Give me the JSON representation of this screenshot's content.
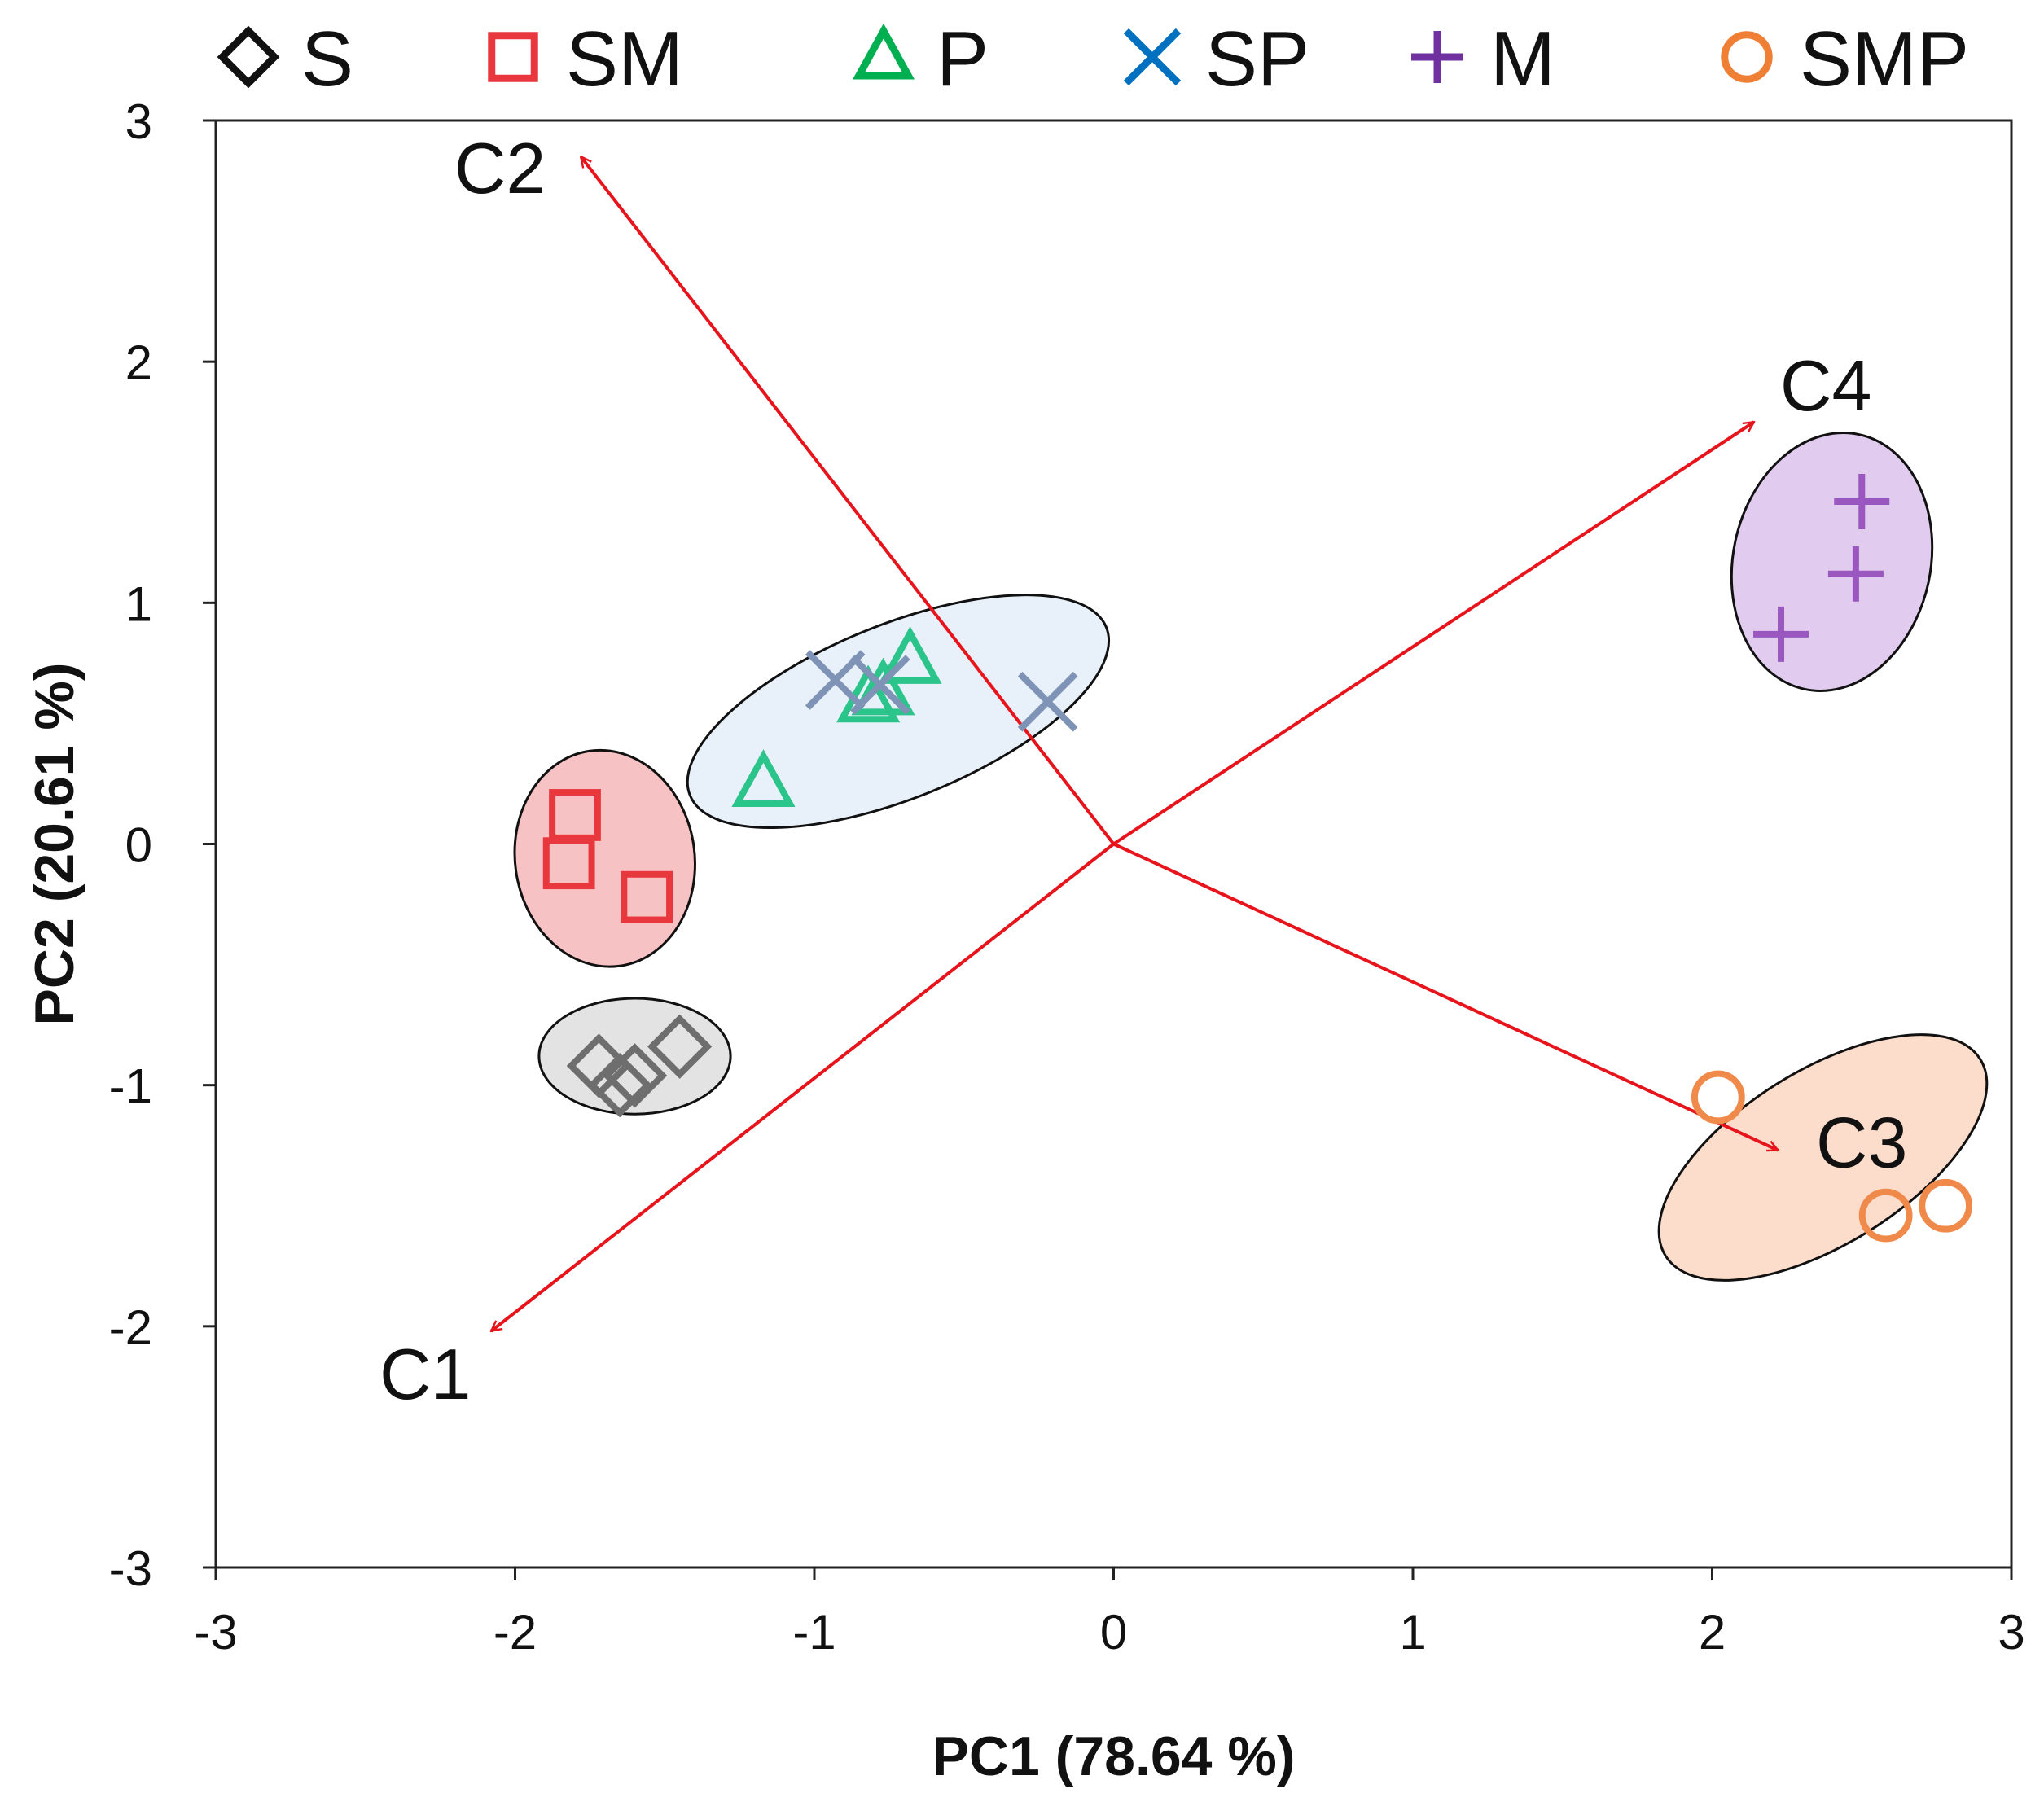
{
  "chart_data": {
    "type": "scatter",
    "title": "",
    "xlabel": "PC1 (78.64 %)",
    "ylabel": "PC2 (20.61 %)",
    "xlim": [
      -3,
      3
    ],
    "ylim": [
      -3,
      3
    ],
    "xticks": [
      "-3",
      "-2",
      "-1",
      "0",
      "1",
      "2",
      "3"
    ],
    "yticks": [
      "3",
      "2",
      "1",
      "0",
      "-1",
      "-2",
      "-3"
    ],
    "xtick_values": [
      -3,
      -2,
      -1,
      0,
      1,
      2,
      3
    ],
    "ytick_values": [
      3,
      2,
      1,
      0,
      -1,
      -2,
      -3
    ],
    "grid": false,
    "legend_position": "top",
    "series": [
      {
        "name": "S",
        "marker": "diamond",
        "color": "#6e6e6e",
        "legend_color": "#111111",
        "x": [
          -1.72,
          -1.6,
          -1.65,
          -1.45
        ],
        "y": [
          -0.92,
          -0.96,
          -1.0,
          -0.84
        ]
      },
      {
        "name": "SM",
        "marker": "square",
        "color": "#e8383d",
        "legend_color": "#e8383d",
        "x": [
          -1.8,
          -1.82,
          -1.56
        ],
        "y": [
          0.12,
          -0.08,
          -0.22
        ]
      },
      {
        "name": "P",
        "marker": "triangle",
        "color": "#2bc48a",
        "legend_color": "#00b050",
        "x": [
          -1.17,
          -0.82,
          -0.68,
          -0.77
        ],
        "y": [
          0.25,
          0.6,
          0.76,
          0.63
        ]
      },
      {
        "name": "SP",
        "marker": "x",
        "color": "#7f93b6",
        "legend_color": "#0070c0",
        "x": [
          -0.93,
          -0.78,
          -0.22
        ],
        "y": [
          0.68,
          0.66,
          0.59
        ]
      },
      {
        "name": "M",
        "marker": "plus",
        "color": "#9a57c0",
        "legend_color": "#7030a0",
        "x": [
          2.23,
          2.48,
          2.5
        ],
        "y": [
          0.87,
          1.12,
          1.42
        ]
      },
      {
        "name": "SMP",
        "marker": "circle",
        "color": "#f08a4b",
        "legend_color": "#f07f36",
        "x": [
          2.02,
          2.58,
          2.78
        ],
        "y": [
          -1.05,
          -1.54,
          -1.5
        ]
      }
    ],
    "ellipses": [
      {
        "group": "S",
        "cx": -1.6,
        "cy": -0.88,
        "rx": 0.32,
        "ry": 0.24,
        "angle": 0,
        "fill": "#e3e3e3"
      },
      {
        "group": "SM",
        "cx": -1.7,
        "cy": -0.06,
        "rx": 0.3,
        "ry": 0.45,
        "angle": -8,
        "fill": "#f7c2c3"
      },
      {
        "group": "P/SP",
        "cx": -0.72,
        "cy": 0.55,
        "rx": 0.75,
        "ry": 0.36,
        "angle": -22,
        "fill": "#e8f1fa"
      },
      {
        "group": "M",
        "cx": 2.4,
        "cy": 1.17,
        "rx": 0.33,
        "ry": 0.54,
        "angle": 12,
        "fill": "#e1ccf0"
      },
      {
        "group": "SMP",
        "cx": 2.37,
        "cy": -1.3,
        "rx": 0.62,
        "ry": 0.36,
        "angle": -32,
        "fill": "#fcdccb"
      }
    ],
    "loadings": [
      {
        "name": "C1",
        "x": -2.08,
        "y": -2.02,
        "label_x": -2.3,
        "label_y": -2.2
      },
      {
        "name": "C2",
        "x": -1.78,
        "y": 2.85,
        "label_x": -2.05,
        "label_y": 2.8
      },
      {
        "name": "C3",
        "x": 2.22,
        "y": -1.27,
        "label_x": 2.5,
        "label_y": -1.24
      },
      {
        "name": "C4",
        "x": 2.14,
        "y": 1.75,
        "label_x": 2.38,
        "label_y": 1.9
      }
    ],
    "loading_color": "#e8141c"
  }
}
